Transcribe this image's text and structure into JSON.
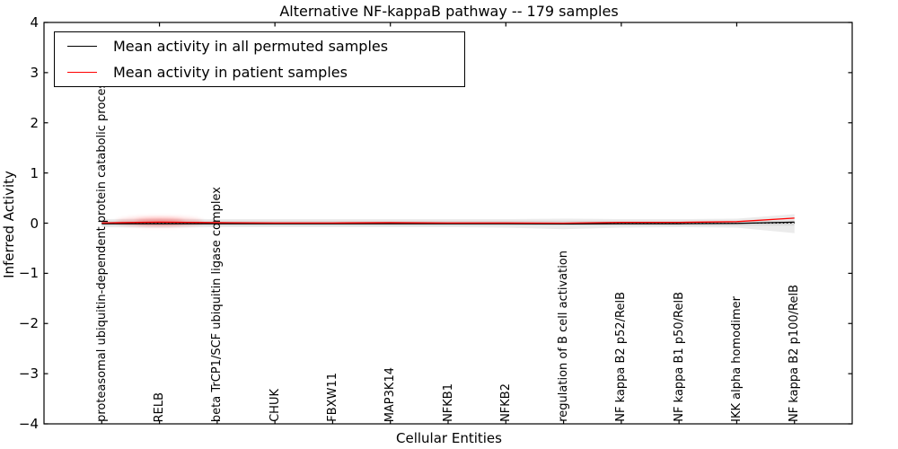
{
  "title": "Alternative NF-kappaB pathway -- 179 samples",
  "legend": {
    "entries": [
      {
        "label": "Mean activity in all permuted samples",
        "color": "#000000"
      },
      {
        "label": "Mean activity in patient samples",
        "color": "#ff0000"
      }
    ]
  },
  "chart_data": {
    "type": "line",
    "title": "Alternative NF-kappaB pathway -- 179 samples",
    "xlabel": "Cellular Entities",
    "ylabel": "Inferred Activity",
    "xlim": [
      0,
      14
    ],
    "ylim": [
      -4,
      4
    ],
    "grid": false,
    "legend_position": "upper left",
    "background": "#ffffff",
    "yticks": [
      4,
      3,
      2,
      1,
      0,
      -1,
      -2,
      -3,
      -4
    ],
    "ytick_labels": [
      "4",
      "3",
      "2",
      "1",
      "0",
      "−1",
      "−2",
      "−3",
      "−4"
    ],
    "top_ticks_x": [
      2,
      4,
      6,
      8,
      10,
      12
    ],
    "x": [
      1,
      2,
      3,
      4,
      5,
      6,
      7,
      8,
      9,
      10,
      11,
      12,
      13
    ],
    "categories": [
      "proteasomal ubiquitin-dependent protein catabolic process",
      "RELB",
      "beta TrCP1/SCF ubiquitin ligase complex",
      "CHUK",
      "FBXW11",
      "MAP3K14",
      "NFKB1",
      "NFKB2",
      "regulation of B cell activation",
      "NF kappa B2 p52/RelB",
      "NF kappa B1 p50/RelB",
      "IKK alpha homodimer",
      "NF kappa B2 p100/RelB"
    ],
    "zero_line": {
      "y": 0,
      "style": "dotted",
      "color": "#000000"
    },
    "series": [
      {
        "name": "Mean activity in all permuted samples",
        "color": "#000000",
        "values": [
          -0.01,
          -0.01,
          -0.01,
          -0.01,
          -0.01,
          -0.01,
          -0.01,
          -0.01,
          -0.015,
          -0.01,
          -0.01,
          -0.005,
          0.02
        ]
      },
      {
        "name": "Mean activity in patient samples",
        "color": "#ff0000",
        "values": [
          0.005,
          0.02,
          0.01,
          0.005,
          0.005,
          0.01,
          0.005,
          0.005,
          0.0,
          0.015,
          0.015,
          0.03,
          0.1
        ]
      }
    ],
    "band": {
      "color": "#ebebeb",
      "inner_color": "#d9d9d9",
      "inner_half_width": 0.05,
      "upper": [
        0.08,
        0.09,
        0.08,
        0.08,
        0.08,
        0.08,
        0.08,
        0.08,
        0.09,
        0.08,
        0.08,
        0.09,
        0.18
      ],
      "lower": [
        -0.08,
        -0.09,
        -0.08,
        -0.08,
        -0.08,
        -0.08,
        -0.08,
        -0.09,
        -0.12,
        -0.09,
        -0.08,
        -0.09,
        -0.2
      ]
    },
    "patient_density_blob": {
      "x": 2,
      "y": 0.03,
      "rx": 0.75,
      "ry": 0.1,
      "color": "#ff0000",
      "opacity": 0.16
    }
  }
}
